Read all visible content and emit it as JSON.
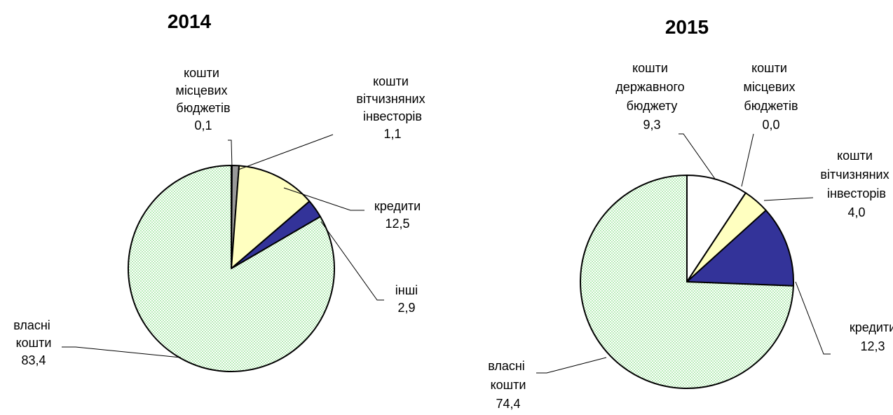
{
  "chart_data": [
    {
      "type": "pie",
      "title": "2014",
      "categories": [
        "кошти місцевих бюджетів",
        "кошти вітчизняних інвесторів",
        "кредити",
        "інші",
        "власні кошти"
      ],
      "values": [
        0.1,
        1.1,
        12.5,
        2.9,
        83.4
      ],
      "value_labels": [
        "0,1",
        "1,1",
        "12,5",
        "2,9",
        "83,4"
      ],
      "colors": [
        "#ffffff",
        "#999999",
        "#ffffc0",
        "#333399",
        "#ccf5cc"
      ]
    },
    {
      "type": "pie",
      "title": "2015",
      "categories": [
        "кошти державного бюджету",
        "кошти місцевих бюджетів",
        "кошти вітчизняних інвесторів",
        "кредити",
        "власні кошти"
      ],
      "values": [
        9.3,
        0.0,
        4.0,
        12.3,
        74.4
      ],
      "value_labels": [
        "9,3",
        "0,0",
        "4,0",
        "12,3",
        "74,4"
      ],
      "colors": [
        "#ffffff",
        "#ffffff",
        "#ffffc0",
        "#333399",
        "#ccf5cc"
      ]
    }
  ]
}
